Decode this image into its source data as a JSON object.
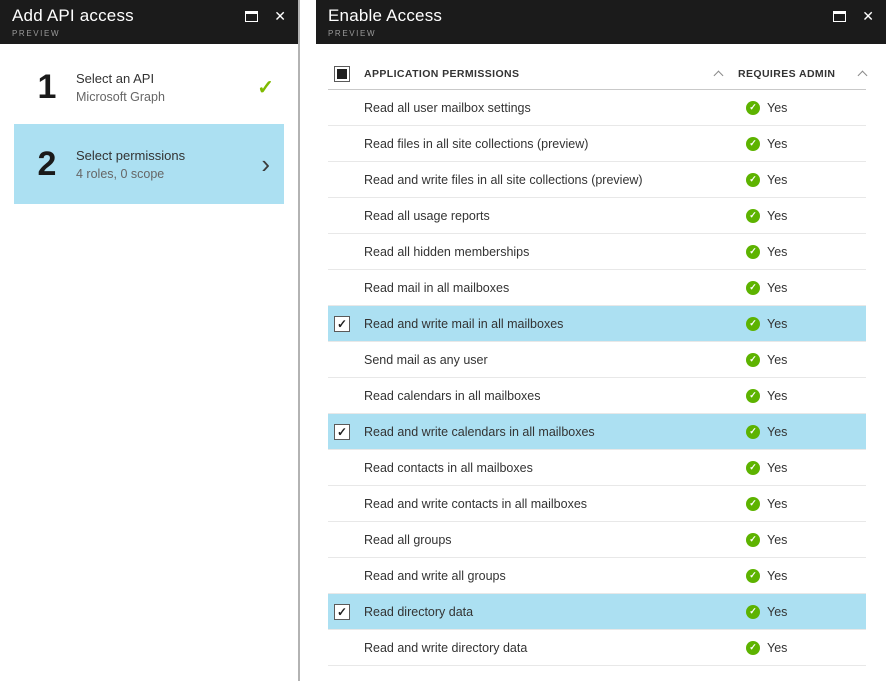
{
  "colors": {
    "header_bg": "#1b1b1b",
    "highlight": "#ace0f2",
    "green_yes": "#5db300",
    "green_check": "#7fba00"
  },
  "left_panel": {
    "title": "Add API access",
    "preview": "PREVIEW",
    "steps": [
      {
        "number": "1",
        "label": "Select an API",
        "sublabel": "Microsoft Graph"
      },
      {
        "number": "2",
        "label": "Select permissions",
        "sublabel": "4 roles, 0 scope"
      }
    ]
  },
  "right_panel": {
    "title": "Enable Access",
    "preview": "PREVIEW",
    "columns": [
      "APPLICATION PERMISSIONS",
      "REQUIRES ADMIN"
    ],
    "rows": [
      {
        "name": "Read all user mailbox settings",
        "admin": "Yes",
        "checked": false
      },
      {
        "name": "Read files in all site collections (preview)",
        "admin": "Yes",
        "checked": false
      },
      {
        "name": "Read and write files in all site collections (preview)",
        "admin": "Yes",
        "checked": false
      },
      {
        "name": "Read all usage reports",
        "admin": "Yes",
        "checked": false
      },
      {
        "name": "Read all hidden memberships",
        "admin": "Yes",
        "checked": false
      },
      {
        "name": "Read mail in all mailboxes",
        "admin": "Yes",
        "checked": false
      },
      {
        "name": "Read and write mail in all mailboxes",
        "admin": "Yes",
        "checked": true
      },
      {
        "name": "Send mail as any user",
        "admin": "Yes",
        "checked": false
      },
      {
        "name": "Read calendars in all mailboxes",
        "admin": "Yes",
        "checked": false
      },
      {
        "name": "Read and write calendars in all mailboxes",
        "admin": "Yes",
        "checked": true
      },
      {
        "name": "Read contacts in all mailboxes",
        "admin": "Yes",
        "checked": false
      },
      {
        "name": "Read and write contacts in all mailboxes",
        "admin": "Yes",
        "checked": false
      },
      {
        "name": "Read all groups",
        "admin": "Yes",
        "checked": false
      },
      {
        "name": "Read and write all groups",
        "admin": "Yes",
        "checked": false
      },
      {
        "name": "Read directory data",
        "admin": "Yes",
        "checked": true
      },
      {
        "name": "Read and write directory data",
        "admin": "Yes",
        "checked": false
      }
    ]
  }
}
